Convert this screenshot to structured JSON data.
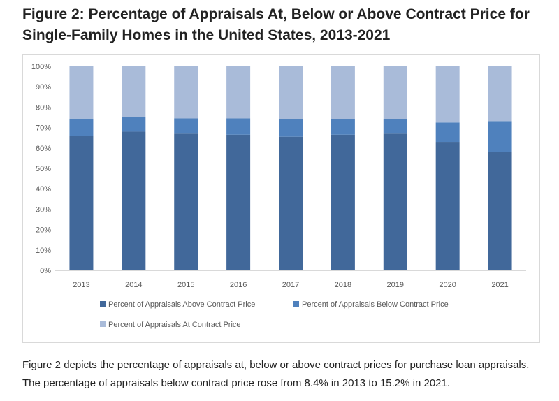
{
  "figure": {
    "title": "Figure 2: Percentage of Appraisals At, Below or Above Contract Price for Single-Family Homes in the United States, 2013-2021",
    "caption": "Figure 2 depicts the percentage of appraisals at, below or above contract prices for purchase loan appraisals. The percentage of appraisals below contract price rose from 8.4% in 2013 to 15.2% in 2021."
  },
  "chart_data": {
    "type": "bar",
    "stacked": true,
    "title": "",
    "xlabel": "",
    "ylabel": "",
    "ylim": [
      0,
      100
    ],
    "y_ticks": [
      "0%",
      "10%",
      "20%",
      "30%",
      "40%",
      "50%",
      "60%",
      "70%",
      "80%",
      "90%",
      "100%"
    ],
    "grid": false,
    "legend_position": "bottom",
    "categories": [
      "2013",
      "2014",
      "2015",
      "2016",
      "2017",
      "2018",
      "2019",
      "2020",
      "2021"
    ],
    "series": [
      {
        "name": "Percent of Appraisals Above Contract Price",
        "color": "#41689a",
        "values": [
          66.0,
          68.0,
          67.0,
          66.5,
          65.5,
          66.5,
          67.0,
          63.0,
          58.0
        ]
      },
      {
        "name": "Percent of Appraisals Below Contract Price",
        "color": "#4f81bd",
        "values": [
          8.4,
          7.0,
          7.5,
          8.0,
          8.5,
          7.5,
          7.0,
          9.5,
          15.2
        ]
      },
      {
        "name": "Percent of Appraisals At Contract Price",
        "color": "#a9bbd9",
        "values": [
          25.6,
          25.0,
          25.5,
          25.5,
          26.0,
          26.0,
          26.0,
          27.5,
          26.8
        ]
      }
    ]
  }
}
